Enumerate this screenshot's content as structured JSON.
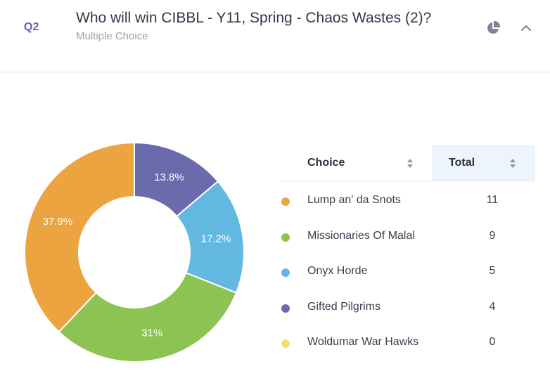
{
  "question": {
    "number": "Q2",
    "title": "Who will win CIBBL - Y11, Spring - Chaos Wastes (2)?",
    "type": "Multiple Choice"
  },
  "icons": {
    "chart_toggle": "pie-chart-icon",
    "collapse": "chevron-up-icon"
  },
  "table": {
    "headers": {
      "choice": "Choice",
      "total": "Total"
    }
  },
  "chart_data": {
    "type": "pie",
    "variant": "donut",
    "categories": [
      "Lump an' da Snots",
      "Missionaries Of Malal",
      "Onyx Horde",
      "Gifted Pilgrims",
      "Woldumar War Hawks"
    ],
    "values": [
      11,
      9,
      5,
      4,
      0
    ],
    "value_labels": [
      "37.9%",
      "31%",
      "17.2%",
      "13.8%",
      ""
    ],
    "colors": [
      "#eba43f",
      "#8dc353",
      "#62b8e1",
      "#6a6aad",
      "#f5dc75"
    ]
  }
}
